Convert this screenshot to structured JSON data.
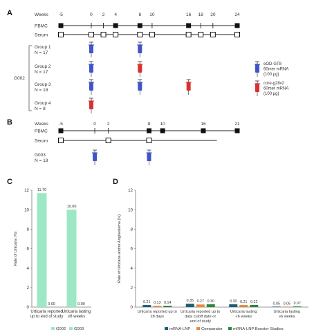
{
  "panels": {
    "a": "A",
    "b": "B",
    "c": "C",
    "d": "D"
  },
  "colors": {
    "blue": "#3f55c7",
    "red": "#d8322f",
    "mint": "#9de8c4",
    "teal": "#1f5d78",
    "orange": "#e8893a",
    "green": "#2e8540"
  },
  "schedule_a": {
    "weeks_label": "Weeks",
    "ticks": [
      -5,
      0,
      2,
      4,
      8,
      10,
      16,
      18,
      20,
      24
    ],
    "pbmc_label": "PBMC",
    "serum_label": "Serum",
    "pbmc_weeks": [
      -5,
      4,
      8,
      16,
      24
    ],
    "serum_weeks": [
      -5,
      0,
      2,
      4,
      8,
      10,
      16,
      18,
      20,
      24
    ],
    "study_label": "G002",
    "groups": [
      {
        "name": "Group 1",
        "n": "N = 17",
        "doses": [
          {
            "week": 0,
            "kind": "blue"
          },
          {
            "week": 8,
            "kind": "blue"
          }
        ]
      },
      {
        "name": "Group 2",
        "n": "N = 17",
        "doses": [
          {
            "week": 0,
            "kind": "blue"
          },
          {
            "week": 8,
            "kind": "red"
          }
        ]
      },
      {
        "name": "Group 3",
        "n": "N = 18",
        "doses": [
          {
            "week": 0,
            "kind": "blue"
          },
          {
            "week": 8,
            "kind": "blue"
          },
          {
            "week": 16,
            "kind": "red"
          }
        ]
      },
      {
        "name": "Group 4",
        "n": "N = 8",
        "doses": [
          {
            "week": 0,
            "kind": "red"
          }
        ]
      }
    ],
    "legend": [
      {
        "kind": "blue",
        "lines": [
          "eOD-GT8",
          "60mer mRNA",
          "(100 µg)"
        ]
      },
      {
        "kind": "red",
        "lines": [
          "core-g28v2",
          "60mer mRNA",
          "(100 µg)"
        ]
      }
    ]
  },
  "schedule_b": {
    "weeks_label": "Weeks",
    "ticks": [
      -5,
      0,
      2,
      8,
      10,
      16,
      21
    ],
    "pbmc_label": "PBMC",
    "serum_label": "Serum",
    "pbmc_weeks": [
      -5,
      8,
      10,
      16,
      21
    ],
    "serum_weeks": [
      -5,
      2,
      8
    ],
    "serum_end_week": 18,
    "groups": [
      {
        "name": "G003",
        "n": "N = 18",
        "doses": [
          {
            "week": 0,
            "kind": "blue"
          },
          {
            "week": 8,
            "kind": "blue"
          }
        ]
      }
    ]
  },
  "chart_data": [
    {
      "type": "bar",
      "ylabel": "Rate of Urticaria (%)",
      "ylim": [
        0,
        12
      ],
      "yticks": [
        0,
        2,
        4,
        6,
        8,
        10,
        12
      ],
      "categories": [
        [
          "Urticaria reported",
          "up to end of study"
        ],
        [
          "Urticaria lasting",
          "≥6 weeks"
        ]
      ],
      "series": [
        {
          "name": "G002",
          "color": "#9de8c4",
          "values": [
            11.7,
            10.0
          ],
          "labels": [
            "11.70",
            "10.00"
          ]
        },
        {
          "name": "G003",
          "color": "#9de8c4",
          "values": [
            0.0,
            0.0
          ],
          "labels": [
            "0.00",
            "0.00"
          ]
        }
      ],
      "legend_position": "bottom"
    },
    {
      "type": "bar",
      "ylabel": "Rate of Urticaria and/or Angioedema (%)",
      "ylim": [
        0,
        12
      ],
      "yticks": [
        0,
        2,
        4,
        6,
        8,
        10,
        12
      ],
      "categories": [
        [
          "Urticaria reported up to",
          "28 days"
        ],
        [
          "Urticaria reported up to",
          "data cutoff date or",
          "end of study"
        ],
        [
          "Urticaria lasting",
          "<6 weeks"
        ],
        [
          "Urticaria lasting",
          "≥6 weeks"
        ]
      ],
      "series": [
        {
          "name": "mRNA-LNP",
          "color": "#1f5d78",
          "values": [
            0.21,
            0.35,
            0.3,
            0.05
          ],
          "labels": [
            "0.21",
            "0.35",
            "0.30",
            "0.05"
          ]
        },
        {
          "name": "Comparator",
          "color": "#e8893a",
          "values": [
            0.13,
            0.27,
            0.21,
            0.05
          ],
          "labels": [
            "0.13",
            "0.27",
            "0.21",
            "0.05"
          ]
        },
        {
          "name": "mRNA-LNP Booster Studies",
          "color": "#2e8540",
          "values": [
            0.14,
            0.3,
            0.22,
            0.07
          ],
          "labels": [
            "0.14",
            "0.30",
            "0.22",
            "0.07"
          ]
        }
      ],
      "legend_position": "bottom"
    }
  ]
}
